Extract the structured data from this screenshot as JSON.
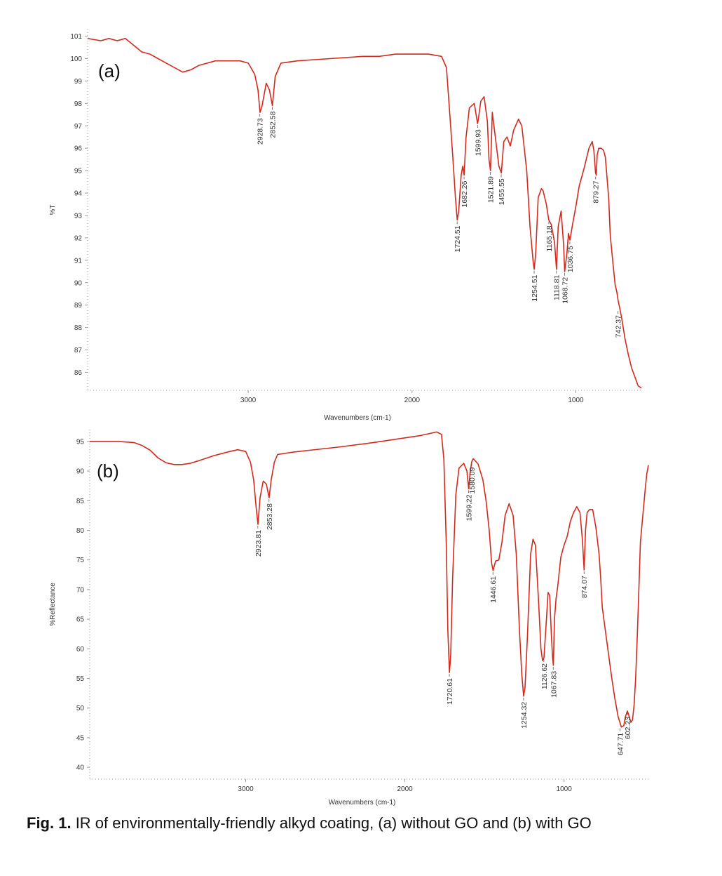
{
  "caption": {
    "label": "Fig. 1.",
    "text": "IR of environmentally-friendly alkyd coating, (a) without GO and (b) with GO"
  },
  "colors": {
    "spectrum": "#d42a1e",
    "axis": "#9a9a9a",
    "text": "#333333"
  },
  "chart_data": [
    {
      "type": "line",
      "panel_label": "(a)",
      "ylabel": "%T",
      "xlabel": "Wavenumbers (cm-1)",
      "xlim": [
        3980,
        600
      ],
      "x_reversed": true,
      "ylim": [
        85.2,
        101.3
      ],
      "xticks": [
        3000,
        2000,
        1000
      ],
      "yticks": [
        101,
        100,
        99,
        98,
        97,
        96,
        95,
        94,
        93,
        92,
        91,
        90,
        89,
        88,
        87,
        86
      ],
      "series": [
        {
          "x": [
            3980,
            3900,
            3850,
            3800,
            3750,
            3700,
            3650,
            3600,
            3550,
            3500,
            3450,
            3400,
            3350,
            3300,
            3250,
            3200,
            3100,
            3050,
            3000,
            2960,
            2940,
            2928,
            2915,
            2890,
            2870,
            2852,
            2835,
            2800,
            2700,
            2500,
            2300,
            2200,
            2100,
            2000,
            1900,
            1820,
            1790,
            1770,
            1750,
            1735,
            1724,
            1715,
            1700,
            1690,
            1682,
            1670,
            1650,
            1620,
            1600,
            1595,
            1580,
            1560,
            1540,
            1530,
            1521,
            1510,
            1490,
            1470,
            1455,
            1440,
            1420,
            1400,
            1380,
            1350,
            1330,
            1300,
            1280,
            1260,
            1254,
            1245,
            1230,
            1210,
            1200,
            1180,
            1165,
            1150,
            1130,
            1118,
            1108,
            1090,
            1075,
            1068,
            1055,
            1045,
            1036,
            1020,
            1000,
            980,
            950,
            920,
            900,
            890,
            880,
            875,
            870,
            860,
            845,
            830,
            820,
            800,
            790,
            770,
            760,
            750,
            742,
            730,
            720,
            700,
            680,
            660,
            640,
            620,
            600
          ],
          "y": [
            100.9,
            100.8,
            100.9,
            100.8,
            100.9,
            100.6,
            100.3,
            100.2,
            100.0,
            99.8,
            99.6,
            99.4,
            99.5,
            99.7,
            99.8,
            99.9,
            99.9,
            99.9,
            99.8,
            99.3,
            98.6,
            97.6,
            97.9,
            98.9,
            98.6,
            97.9,
            99.2,
            99.8,
            99.9,
            100.0,
            100.1,
            100.1,
            100.2,
            100.2,
            100.2,
            100.1,
            99.6,
            97.6,
            95.5,
            93.8,
            92.8,
            93.2,
            94.8,
            95.2,
            94.8,
            96.5,
            97.8,
            98.0,
            97.1,
            97.3,
            98.1,
            98.3,
            97.2,
            95.5,
            95.0,
            97.6,
            96.4,
            95.2,
            94.9,
            96.3,
            96.5,
            96.1,
            96.8,
            97.3,
            97.0,
            95.0,
            92.5,
            90.9,
            90.6,
            91.3,
            93.8,
            94.2,
            94.1,
            93.5,
            92.8,
            92.6,
            91.8,
            90.6,
            92.5,
            93.2,
            91.7,
            90.5,
            91.3,
            92.2,
            91.9,
            92.6,
            93.4,
            94.3,
            95.1,
            96.0,
            96.3,
            95.9,
            94.9,
            94.8,
            95.7,
            96.0,
            96.0,
            95.9,
            95.6,
            93.8,
            92.1,
            90.6,
            89.9,
            89.6,
            89.2,
            88.8,
            88.4,
            87.5,
            86.8,
            86.2,
            85.8,
            85.4,
            85.3
          ]
        }
      ],
      "annotations": [
        {
          "x": 2928.73,
          "y": 97.6,
          "text": "2928.73"
        },
        {
          "x": 2852.58,
          "y": 97.9,
          "text": "2852.58"
        },
        {
          "x": 1724.51,
          "y": 92.8,
          "text": "1724.51"
        },
        {
          "x": 1682.26,
          "y": 94.8,
          "text": "1682.26"
        },
        {
          "x": 1599.93,
          "y": 97.1,
          "text": "1599.93"
        },
        {
          "x": 1521.89,
          "y": 95.0,
          "text": "1521.89"
        },
        {
          "x": 1455.55,
          "y": 94.9,
          "text": "1455.55"
        },
        {
          "x": 1254.51,
          "y": 90.6,
          "text": "1254.51"
        },
        {
          "x": 1165.18,
          "y": 92.8,
          "text": "1165.18"
        },
        {
          "x": 1118.81,
          "y": 90.6,
          "text": "1118.81"
        },
        {
          "x": 1068.72,
          "y": 90.5,
          "text": "1068.72"
        },
        {
          "x": 1036.75,
          "y": 91.9,
          "text": "1036.75"
        },
        {
          "x": 879.27,
          "y": 94.8,
          "text": "879.27"
        },
        {
          "x": 742.37,
          "y": 88.8,
          "text": "742.37"
        }
      ]
    },
    {
      "type": "line",
      "panel_label": "(b)",
      "ylabel": "%Reflectance",
      "xlabel": "Wavenumbers (cm-1)",
      "xlim": [
        3980,
        470
      ],
      "x_reversed": true,
      "ylim": [
        38,
        97
      ],
      "xticks": [
        3000,
        2000,
        1000
      ],
      "yticks": [
        95,
        90,
        85,
        80,
        75,
        70,
        65,
        60,
        55,
        50,
        45,
        40
      ],
      "series": [
        {
          "x": [
            3980,
            3800,
            3700,
            3650,
            3600,
            3550,
            3500,
            3450,
            3400,
            3350,
            3300,
            3200,
            3100,
            3050,
            3000,
            2970,
            2950,
            2935,
            2923,
            2910,
            2890,
            2870,
            2853,
            2840,
            2820,
            2800,
            2700,
            2600,
            2400,
            2200,
            2000,
            1900,
            1800,
            1770,
            1755,
            1740,
            1730,
            1720,
            1712,
            1700,
            1680,
            1660,
            1630,
            1610,
            1599,
            1590,
            1580,
            1570,
            1540,
            1510,
            1490,
            1470,
            1455,
            1446,
            1430,
            1410,
            1390,
            1370,
            1345,
            1320,
            1300,
            1280,
            1265,
            1254,
            1245,
            1230,
            1210,
            1195,
            1180,
            1160,
            1145,
            1135,
            1126,
            1115,
            1100,
            1090,
            1080,
            1072,
            1067,
            1060,
            1050,
            1040,
            1020,
            1000,
            980,
            960,
            940,
            920,
            900,
            885,
            874,
            865,
            855,
            840,
            820,
            800,
            780,
            770,
            760,
            740,
            720,
            700,
            680,
            660,
            640,
            625,
            615,
            602,
            590,
            580,
            570,
            560,
            550,
            540,
            530,
            520,
            500,
            490,
            480,
            470
          ],
          "y": [
            95.0,
            95.0,
            94.8,
            94.3,
            93.5,
            92.2,
            91.4,
            91.1,
            91.1,
            91.3,
            91.7,
            92.6,
            93.3,
            93.6,
            93.3,
            91.5,
            88.5,
            84.0,
            81.0,
            85.5,
            88.3,
            87.8,
            85.5,
            88.5,
            91.5,
            92.8,
            93.2,
            93.5,
            94.1,
            94.8,
            95.6,
            96.0,
            96.6,
            96.2,
            92.0,
            78.0,
            63.0,
            56.0,
            59.0,
            72.0,
            86.0,
            90.5,
            91.3,
            90.0,
            87.0,
            89.8,
            91.6,
            92.1,
            91.2,
            88.5,
            85.0,
            80.0,
            74.5,
            73.2,
            74.8,
            75.0,
            78.0,
            82.5,
            84.5,
            82.5,
            76.0,
            63.0,
            55.5,
            52.0,
            53.5,
            62.0,
            76.0,
            78.5,
            77.5,
            68.0,
            60.0,
            58.0,
            58.5,
            63.0,
            69.5,
            69.0,
            62.5,
            58.5,
            57.2,
            65.0,
            68.5,
            70.5,
            75.5,
            77.5,
            79.0,
            81.5,
            83.0,
            84.0,
            83.0,
            78.5,
            73.3,
            80.0,
            83.0,
            83.5,
            83.5,
            80.5,
            76.0,
            72.0,
            67.0,
            63.0,
            59.0,
            55.0,
            51.5,
            48.5,
            46.8,
            47.0,
            48.5,
            49.5,
            48.5,
            47.6,
            48.0,
            50.5,
            55.0,
            62.0,
            70.0,
            78.0,
            84.0,
            87.0,
            89.5,
            91.0
          ]
        }
      ],
      "annotations": [
        {
          "x": 2923.81,
          "y": 81.0,
          "text": "2923.81"
        },
        {
          "x": 2853.28,
          "y": 85.5,
          "text": "2853.28"
        },
        {
          "x": 1720.61,
          "y": 56.0,
          "text": "1720.61"
        },
        {
          "x": 1599.22,
          "y": 87.0,
          "text": "1599.22"
        },
        {
          "x": 1580.09,
          "y": 91.6,
          "text": "1580.09"
        },
        {
          "x": 1446.61,
          "y": 73.2,
          "text": "1446.61"
        },
        {
          "x": 1254.32,
          "y": 52.0,
          "text": "1254.32"
        },
        {
          "x": 1126.62,
          "y": 58.5,
          "text": "1126.62"
        },
        {
          "x": 1067.83,
          "y": 57.2,
          "text": "1067.83"
        },
        {
          "x": 874.07,
          "y": 73.3,
          "text": "874.07"
        },
        {
          "x": 647.71,
          "y": 46.8,
          "text": "647.71"
        },
        {
          "x": 602.23,
          "y": 49.5,
          "text": "602.23"
        }
      ]
    }
  ]
}
